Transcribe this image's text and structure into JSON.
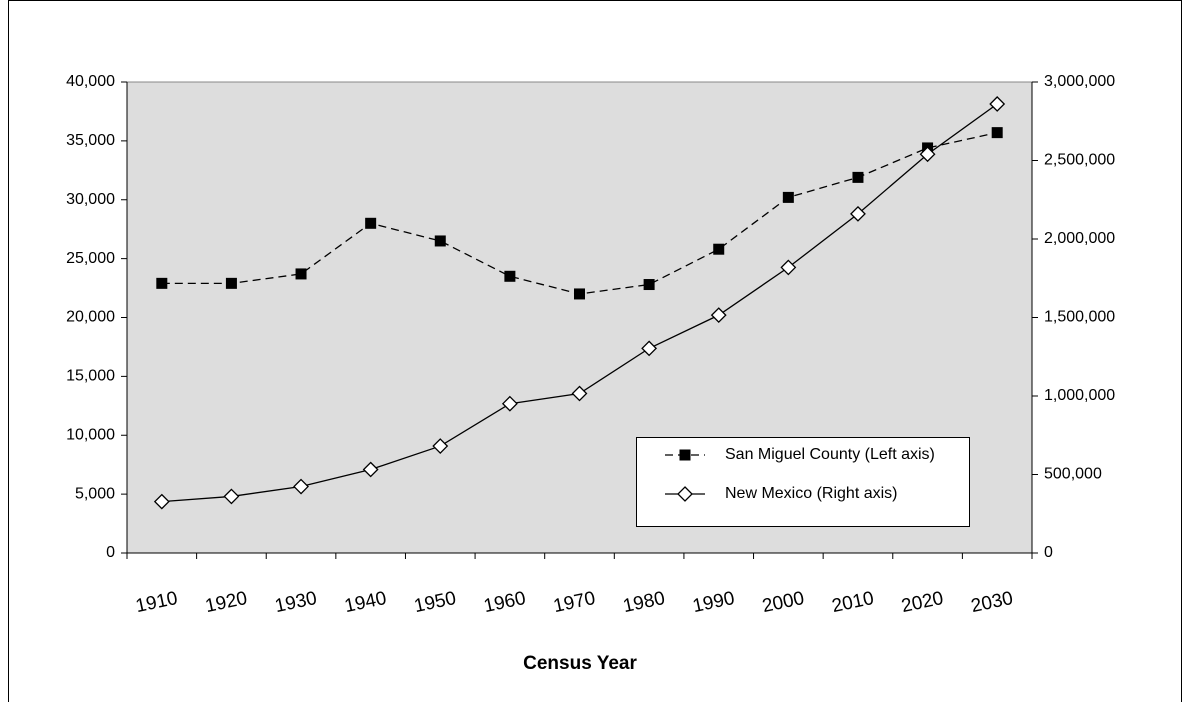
{
  "chart_data": {
    "type": "line",
    "x_label": "Census Year",
    "categories": [
      "1910",
      "1920",
      "1930",
      "1940",
      "1950",
      "1960",
      "1970",
      "1980",
      "1990",
      "2000",
      "2010",
      "2020",
      "2030"
    ],
    "series": [
      {
        "name": "San Miguel County (Left axis)",
        "color": "#000000",
        "dash": true,
        "marker": "square",
        "values": [
          22900,
          22900,
          23700,
          28000,
          26500,
          23500,
          22000,
          22800,
          25800,
          30200,
          31900,
          34400,
          35700
        ]
      },
      {
        "name": "New Mexico (Right axis)",
        "color": "#000000",
        "dash": false,
        "marker": "diamond",
        "axis": "y2",
        "values": [
          327301,
          360350,
          423317,
          531818,
          681187,
          951023,
          1016000,
          1303303,
          1515069,
          1819046,
          2160000,
          2540000,
          2860000
        ]
      }
    ],
    "ylim": [
      0,
      40000
    ],
    "yticks": [
      0,
      {
        "value": 5000,
        "label": "5,000"
      },
      {
        "value": 10000,
        "label": "10,000"
      },
      {
        "value": 15000,
        "label": "15,000"
      },
      {
        "value": 20000,
        "label": "20,000"
      },
      {
        "value": 25000,
        "label": "25,000"
      },
      {
        "value": 30000,
        "label": "30,000"
      },
      {
        "value": 35000,
        "label": "35,000"
      },
      {
        "value": 40000,
        "label": "40,000"
      }
    ],
    "y2lim": [
      0,
      3000000
    ],
    "y2ticks": [
      0,
      {
        "value": 500000,
        "label": "500,000"
      },
      {
        "value": 1000000,
        "label": "1,000,000"
      },
      {
        "value": 1500000,
        "label": "1,500,000"
      },
      {
        "value": 2000000,
        "label": "2,000,000"
      },
      {
        "value": 2500000,
        "label": "2,500,000"
      },
      {
        "value": 3000000,
        "label": "3,000,000"
      }
    ],
    "plot_background": "#dddddd"
  }
}
